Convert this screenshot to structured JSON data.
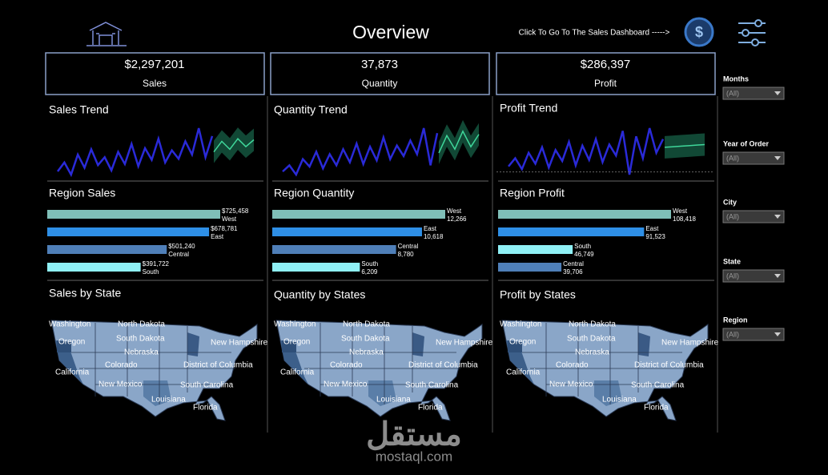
{
  "header": {
    "title": "Overview",
    "link_text": "Click To Go To The Sales Dashboard ----->"
  },
  "panels": [
    {
      "kpi": {
        "value": "$2,297,201",
        "label": "Sales"
      },
      "trend": {
        "title": "Sales Trend",
        "values": [
          28,
          45,
          22,
          60,
          35,
          70,
          40,
          55,
          30,
          65,
          42,
          80,
          38,
          72,
          50,
          90,
          45,
          68,
          52,
          85,
          60,
          110,
          55,
          95
        ],
        "forecast": [
          65,
          85,
          70,
          90,
          75,
          88
        ]
      },
      "region": {
        "title": "Region Sales",
        "categories": [
          "West",
          "East",
          "Central",
          "South"
        ],
        "values": [
          725458,
          678781,
          501240,
          391722
        ],
        "value_labels": [
          "$725,458",
          "$678,781",
          "$501,240",
          "$391,722"
        ]
      },
      "map": {
        "title": "Sales by State",
        "labels": [
          "Washington",
          "North Dakota",
          "Oregon",
          "South Dakota",
          "New Hampshire",
          "Nebraska",
          "California",
          "Colorado",
          "District of Columbia",
          "New Mexico",
          "South Carolina",
          "Louisiana",
          "Florida"
        ]
      }
    },
    {
      "kpi": {
        "value": "37,873",
        "label": "Quantity"
      },
      "trend": {
        "title": "Quantity Trend",
        "values": [
          30,
          40,
          25,
          50,
          38,
          62,
          35,
          58,
          40,
          66,
          45,
          75,
          42,
          70,
          48,
          85,
          50,
          72,
          55,
          80,
          58,
          100,
          40,
          92
        ],
        "forecast": [
          60,
          88,
          66,
          95,
          70,
          90
        ]
      },
      "region": {
        "title": "Region Quantity",
        "categories": [
          "West",
          "East",
          "Central",
          "South"
        ],
        "values": [
          12266,
          10618,
          8780,
          6209
        ],
        "value_labels": [
          "12,266",
          "10,618",
          "8,780",
          "6,209"
        ]
      },
      "map": {
        "title": "Quantity by States",
        "labels": [
          "Washington",
          "North Dakota",
          "Oregon",
          "South Dakota",
          "New Hampshire",
          "Nebraska",
          "California",
          "Colorado",
          "District of Columbia",
          "New Mexico",
          "South Carolina",
          "Louisiana",
          "Florida"
        ]
      }
    },
    {
      "kpi": {
        "value": "$286,397",
        "label": "Profit"
      },
      "trend": {
        "title": "Profit Trend",
        "values": [
          10,
          25,
          5,
          35,
          15,
          45,
          8,
          40,
          20,
          55,
          12,
          48,
          22,
          60,
          18,
          50,
          30,
          75,
          -5,
          65,
          25,
          80,
          35,
          60
        ],
        "forecast": [
          45,
          46,
          47,
          48,
          49,
          50
        ]
      },
      "region": {
        "title": "Region Profit",
        "categories": [
          "West",
          "East",
          "South",
          "Central"
        ],
        "values": [
          108418,
          91523,
          46749,
          39706
        ],
        "value_labels": [
          "108,418",
          "91,523",
          "46,749",
          "39,706"
        ]
      },
      "map": {
        "title": "Profit by States",
        "labels": [
          "Washington",
          "North Dakota",
          "Oregon",
          "South Dakota",
          "New Hampshire",
          "Nebraska",
          "California",
          "Colorado",
          "District of Columbia",
          "New Mexico",
          "South Carolina",
          "Louisiana",
          "Florida"
        ]
      }
    }
  ],
  "filters": [
    {
      "label": "Months",
      "value": "(All)"
    },
    {
      "label": "Year of Order",
      "value": "(All)"
    },
    {
      "label": "City",
      "value": "(All)"
    },
    {
      "label": "State",
      "value": "(All)"
    },
    {
      "label": "Region",
      "value": "(All)"
    }
  ],
  "watermark": {
    "arabic": "مستقل",
    "latin": "mostaql.com"
  }
}
